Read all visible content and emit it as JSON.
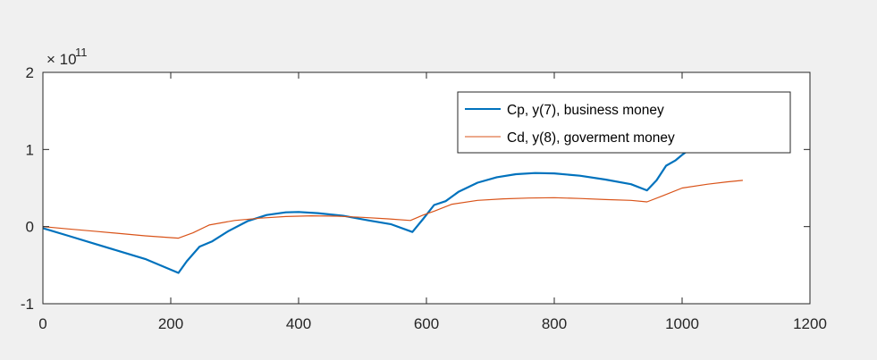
{
  "chart_data": {
    "type": "line",
    "title": "",
    "xlabel": "",
    "ylabel": "",
    "xlim": [
      0,
      1200
    ],
    "ylim": [
      -1,
      2
    ],
    "y_exponent_label": "× 10",
    "y_exponent_power": "11",
    "x_ticks": [
      "0",
      "200",
      "400",
      "600",
      "800",
      "1000",
      "1200"
    ],
    "y_ticks": [
      "-1",
      "0",
      "1",
      "2"
    ],
    "legend_position": "top-right",
    "grid": false,
    "series": [
      {
        "name": "Cp, y(7), business money",
        "color": "#0072bd",
        "x": [
          0,
          40,
          80,
          120,
          160,
          212,
          225,
          245,
          265,
          290,
          320,
          350,
          380,
          400,
          430,
          470,
          510,
          545,
          578,
          595,
          612,
          630,
          650,
          680,
          710,
          740,
          770,
          800,
          840,
          880,
          920,
          945,
          960,
          975,
          990,
          1000,
          1010
        ],
        "y": [
          -0.02,
          -0.12,
          -0.22,
          -0.32,
          -0.42,
          -0.6,
          -0.45,
          -0.26,
          -0.19,
          -0.06,
          0.07,
          0.15,
          0.185,
          0.19,
          0.175,
          0.14,
          0.08,
          0.03,
          -0.07,
          0.1,
          0.28,
          0.33,
          0.45,
          0.57,
          0.64,
          0.68,
          0.695,
          0.69,
          0.66,
          0.61,
          0.55,
          0.47,
          0.6,
          0.79,
          0.86,
          0.93,
          0.99
        ]
      },
      {
        "name": "Cd, y(8), goverment money",
        "color": "#d95319",
        "x": [
          0,
          40,
          80,
          120,
          160,
          212,
          235,
          260,
          300,
          340,
          380,
          420,
          460,
          500,
          540,
          575,
          595,
          612,
          640,
          680,
          720,
          760,
          800,
          840,
          880,
          920,
          945,
          970,
          1000,
          1040,
          1070,
          1095
        ],
        "y": [
          0.0,
          -0.03,
          -0.06,
          -0.09,
          -0.12,
          -0.15,
          -0.08,
          0.02,
          0.08,
          0.11,
          0.13,
          0.14,
          0.135,
          0.12,
          0.1,
          0.08,
          0.15,
          0.2,
          0.29,
          0.34,
          0.36,
          0.37,
          0.375,
          0.365,
          0.35,
          0.34,
          0.32,
          0.4,
          0.5,
          0.55,
          0.58,
          0.6
        ]
      }
    ]
  }
}
